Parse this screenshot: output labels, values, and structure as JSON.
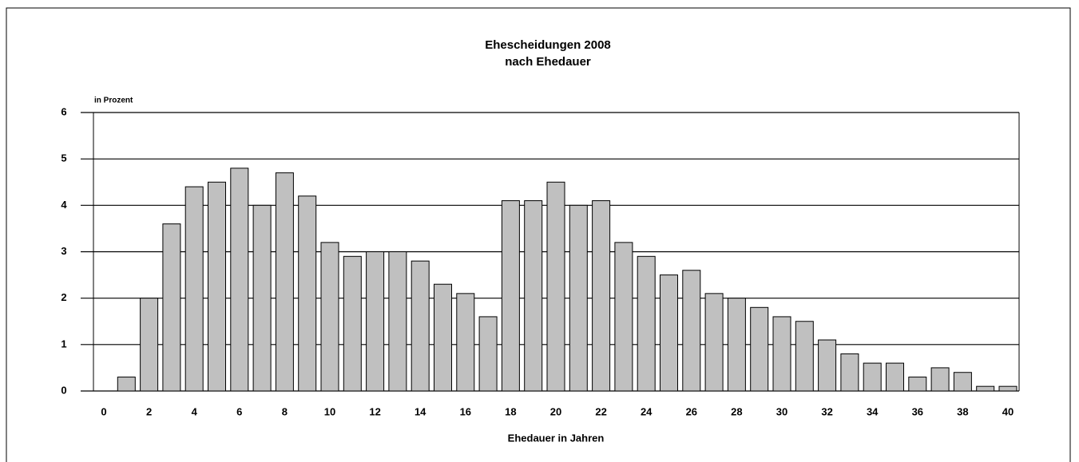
{
  "chart_data": {
    "type": "bar",
    "title": "Ehescheidungen 2008",
    "subtitle": "nach Ehedauer",
    "y_label": "in Prozent",
    "x_label": "Ehedauer in Jahren",
    "categories": [
      "0",
      null,
      "2",
      null,
      "4",
      null,
      "6",
      null,
      "8",
      null,
      "10",
      null,
      "12",
      null,
      "14",
      null,
      "16",
      null,
      "18",
      null,
      "20",
      null,
      "22",
      null,
      "24",
      null,
      "26",
      null,
      "28",
      null,
      "30",
      null,
      "32",
      null,
      "34",
      null,
      "36",
      null,
      "38",
      null,
      "40"
    ],
    "values": [
      0,
      0.3,
      2.0,
      3.6,
      4.4,
      4.5,
      4.8,
      4.0,
      4.7,
      4.2,
      3.2,
      2.9,
      3.0,
      3.0,
      2.8,
      2.3,
      2.1,
      1.6,
      4.1,
      4.1,
      4.5,
      4.0,
      4.1,
      3.2,
      2.9,
      2.5,
      2.6,
      2.1,
      2.0,
      1.8,
      1.6,
      1.5,
      1.1,
      0.8,
      0.6,
      0.6,
      0.3,
      0.5,
      0.4,
      0.1,
      0.1
    ],
    "color": "#c0c0c0",
    "ylim": [
      0,
      6
    ],
    "yticks": [
      0,
      1,
      2,
      3,
      4,
      5,
      6
    ],
    "grid": true
  }
}
